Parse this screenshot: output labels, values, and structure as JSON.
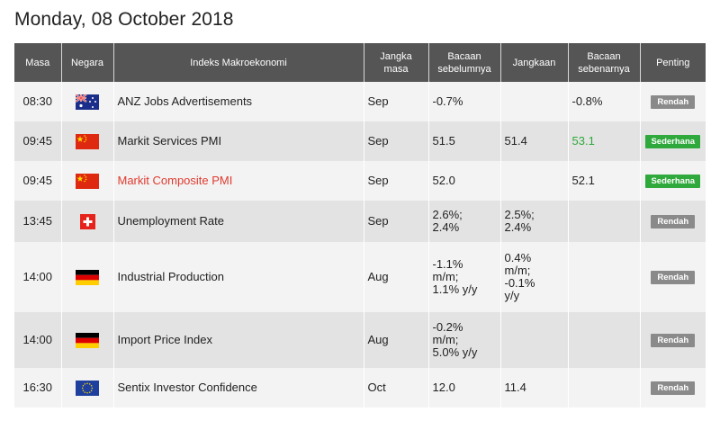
{
  "page_title": "Monday, 08 October 2018",
  "columns": {
    "time": "Masa",
    "country": "Negara",
    "indicator": "Indeks Makroekonomi",
    "period": "Jangka masa",
    "previous": "Bacaan sebelumnya",
    "forecast": "Jangkaan",
    "actual": "Bacaan sebenarnya",
    "importance": "Penting"
  },
  "rows": [
    {
      "time": "08:30",
      "flag": "australia-flag-icon",
      "name": "ANZ Jobs Advertisements",
      "period": "Sep",
      "previous": "-0.7%",
      "forecast": "",
      "actual": "-0.8%",
      "importance": "Rendah",
      "level": "low"
    },
    {
      "time": "09:45",
      "flag": "china-flag-icon",
      "name": "Markit Services PMI",
      "period": "Sep",
      "previous": "51.5",
      "forecast": "51.4",
      "actual": "53.1",
      "importance": "Sederhana",
      "level": "med"
    },
    {
      "time": "09:45",
      "flag": "china-flag-icon",
      "name": "Markit Composite PMI",
      "period": "Sep",
      "previous": "52.0",
      "forecast": "",
      "actual": "52.1",
      "importance": "Sederhana",
      "level": "med"
    },
    {
      "time": "13:45",
      "flag": "switzerland-flag-icon",
      "name": "Unemployment Rate",
      "period": "Sep",
      "previous": "2.6%;\n2.4%",
      "forecast": "2.5%;\n2.4%",
      "actual": "",
      "importance": "Rendah",
      "level": "low"
    },
    {
      "time": "14:00",
      "flag": "germany-flag-icon",
      "name": "Industrial Production",
      "period": "Aug",
      "previous": "-1.1%\nm/m;\n1.1% y/y",
      "forecast": "0.4%\nm/m;\n-0.1%\ny/y",
      "actual": "",
      "importance": "Rendah",
      "level": "low"
    },
    {
      "time": "14:00",
      "flag": "germany-flag-icon",
      "name": "Import Price Index",
      "period": "Aug",
      "previous": "-0.2%\nm/m;\n5.0% y/y",
      "forecast": "",
      "actual": "",
      "importance": "Rendah",
      "level": "low"
    },
    {
      "time": "16:30",
      "flag": "eu-flag-icon",
      "name": "Sentix Investor Confidence",
      "period": "Oct",
      "previous": "12.0",
      "forecast": "11.4",
      "actual": "",
      "importance": "Rendah",
      "level": "low"
    }
  ],
  "colors": {
    "header_bg": "#555555",
    "row_odd": "#f3f3f3",
    "row_even": "#e3e3e3",
    "badge_low": "#8a8a8a",
    "badge_medium": "#2fa83c",
    "link_red": "#e03a2e",
    "value_green": "#2ea83a"
  }
}
